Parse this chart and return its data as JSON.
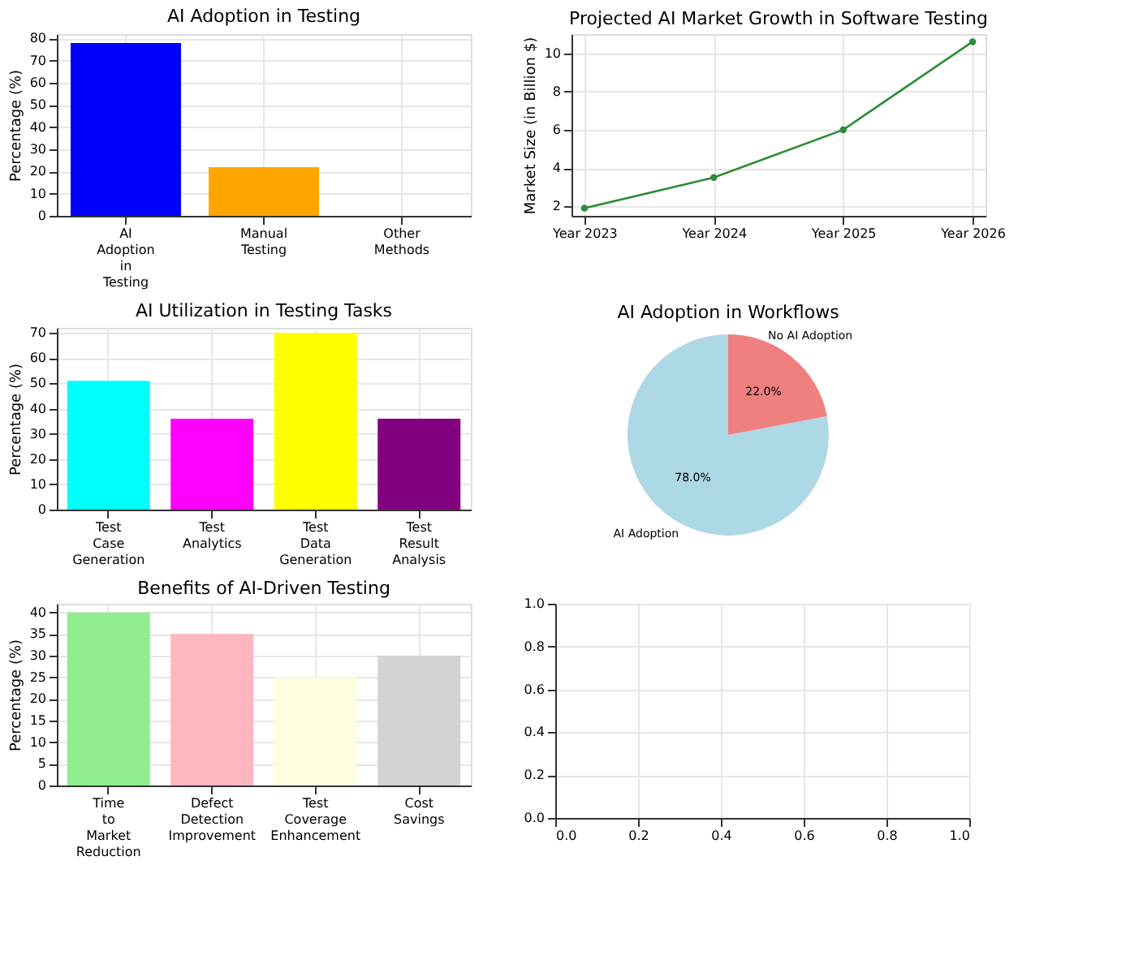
{
  "chart_data": [
    {
      "type": "bar",
      "title": "AI Adoption in Testing",
      "ylabel": "Percentage (%)",
      "categories": [
        "AI Adoption in Testing",
        "Manual Testing",
        "Other Methods"
      ],
      "values": [
        78,
        22,
        0
      ],
      "colors": [
        "#0000ff",
        "#ffa500",
        "#808080"
      ],
      "ylim": [
        0,
        82
      ],
      "yticks": [
        0,
        10,
        20,
        30,
        40,
        50,
        60,
        70,
        80
      ],
      "grid": true
    },
    {
      "type": "line",
      "title": "Projected AI Market Growth in Software Testing",
      "ylabel": "Market Size (in Billion $)",
      "categories": [
        "Year 2023",
        "Year 2024",
        "Year 2025",
        "Year 2026"
      ],
      "series": [
        {
          "color": "#2e8b3a",
          "values": [
            1.9,
            3.5,
            6.0,
            10.6
          ]
        }
      ],
      "ylim": [
        1.5,
        11.0
      ],
      "yticks": [
        2,
        4,
        6,
        8,
        10
      ],
      "grid": true,
      "marker": "circle",
      "line_style": "solid"
    },
    {
      "type": "bar",
      "title": "AI Utilization in Testing Tasks",
      "ylabel": "Percentage (%)",
      "categories": [
        "Test Case Generation",
        "Test Analytics",
        "Test Data Generation",
        "Test Result Analysis"
      ],
      "values": [
        51,
        36,
        70,
        36
      ],
      "colors": [
        "#00ffff",
        "#ff00ff",
        "#ffff00",
        "#800080"
      ],
      "ylim": [
        0,
        72
      ],
      "yticks": [
        0,
        10,
        20,
        30,
        40,
        50,
        60,
        70
      ],
      "grid": true
    },
    {
      "type": "pie",
      "title": "AI Adoption in Workflows",
      "categories": [
        "AI Adoption",
        "No AI Adoption"
      ],
      "values": [
        78,
        22
      ],
      "colors": [
        "#add8e6",
        "#f08080"
      ],
      "value_labels": [
        "78.0%",
        "22.0%"
      ]
    },
    {
      "type": "bar",
      "title": "Benefits of AI-Driven Testing",
      "ylabel": "Percentage (%)",
      "categories": [
        "Time to Market Reduction",
        "Defect Detection Improvement",
        "Test Coverage Enhancement",
        "Cost Savings"
      ],
      "values": [
        40,
        35,
        25,
        30
      ],
      "colors": [
        "#90ee90",
        "#ffb6c1",
        "#ffffe0",
        "#d3d3d3"
      ],
      "ylim": [
        0,
        42
      ],
      "yticks": [
        0,
        5,
        10,
        15,
        20,
        25,
        30,
        35,
        40
      ],
      "grid": true
    },
    {
      "type": "scatter",
      "xlim": [
        0,
        1
      ],
      "ylim": [
        0,
        1
      ],
      "xticks": [
        {
          "value": 0,
          "label": "0.0"
        },
        {
          "value": 0.2,
          "label": "0.2"
        },
        {
          "value": 0.4,
          "label": "0.4"
        },
        {
          "value": 0.6,
          "label": "0.6"
        },
        {
          "value": 0.8,
          "label": "0.8"
        },
        {
          "value": 1,
          "label": "1.0"
        }
      ],
      "yticks": [
        {
          "value": 0,
          "label": "0.0"
        },
        {
          "value": 0.2,
          "label": "0.2"
        },
        {
          "value": 0.4,
          "label": "0.4"
        },
        {
          "value": 0.6,
          "label": "0.6"
        },
        {
          "value": 0.8,
          "label": "0.8"
        },
        {
          "value": 1,
          "label": "1.0"
        }
      ],
      "grid": true
    }
  ]
}
